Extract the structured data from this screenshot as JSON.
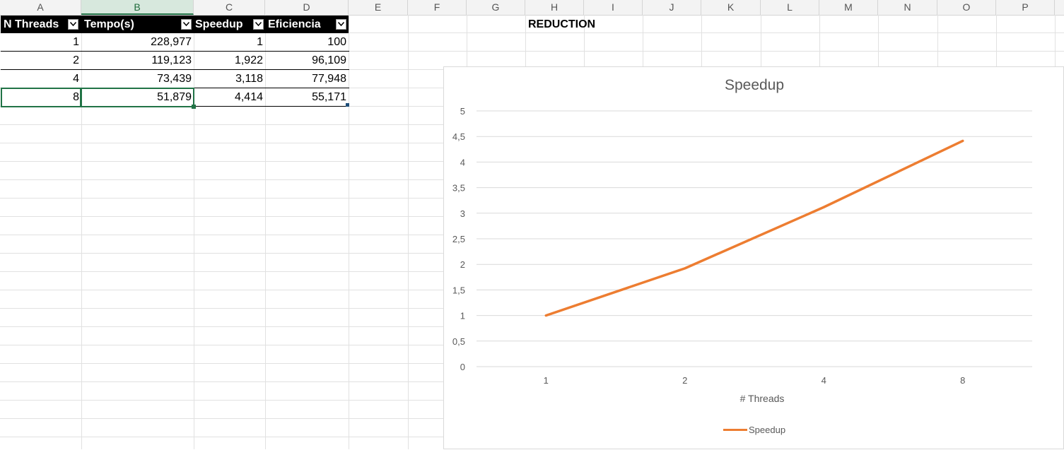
{
  "columns": [
    "A",
    "B",
    "C",
    "D",
    "E",
    "F",
    "G",
    "H",
    "I",
    "J",
    "K",
    "L",
    "M",
    "N",
    "O",
    "P"
  ],
  "table": {
    "headers": [
      "N Threads",
      "Tempo(s)",
      "Speedup",
      "Eficiencia"
    ],
    "rows": [
      [
        "1",
        "228,977",
        "1",
        "100"
      ],
      [
        "2",
        "119,123",
        "1,922",
        "96,109"
      ],
      [
        "4",
        "73,439",
        "3,118",
        "77,948"
      ],
      [
        "8",
        "51,879",
        "4,414",
        "55,171"
      ]
    ]
  },
  "sheet_title": "REDUCTION",
  "selected_cell": "B5",
  "colors": {
    "accent": "#217346",
    "series": "#ed7d31",
    "header_bg": "#000000"
  },
  "chart_data": {
    "type": "line",
    "title": "Speedup",
    "xlabel": "# Threads",
    "ylabel": "",
    "categories": [
      "1",
      "2",
      "4",
      "8"
    ],
    "series": [
      {
        "name": "Speedup",
        "values": [
          1,
          1.922,
          3.118,
          4.414
        ],
        "color": "#ed7d31"
      }
    ],
    "ylim": [
      0,
      5
    ],
    "yticks": [
      "0",
      "0,5",
      "1",
      "1,5",
      "2",
      "2,5",
      "3",
      "3,5",
      "4",
      "4,5",
      "5"
    ],
    "grid": true,
    "legend": "bottom"
  }
}
